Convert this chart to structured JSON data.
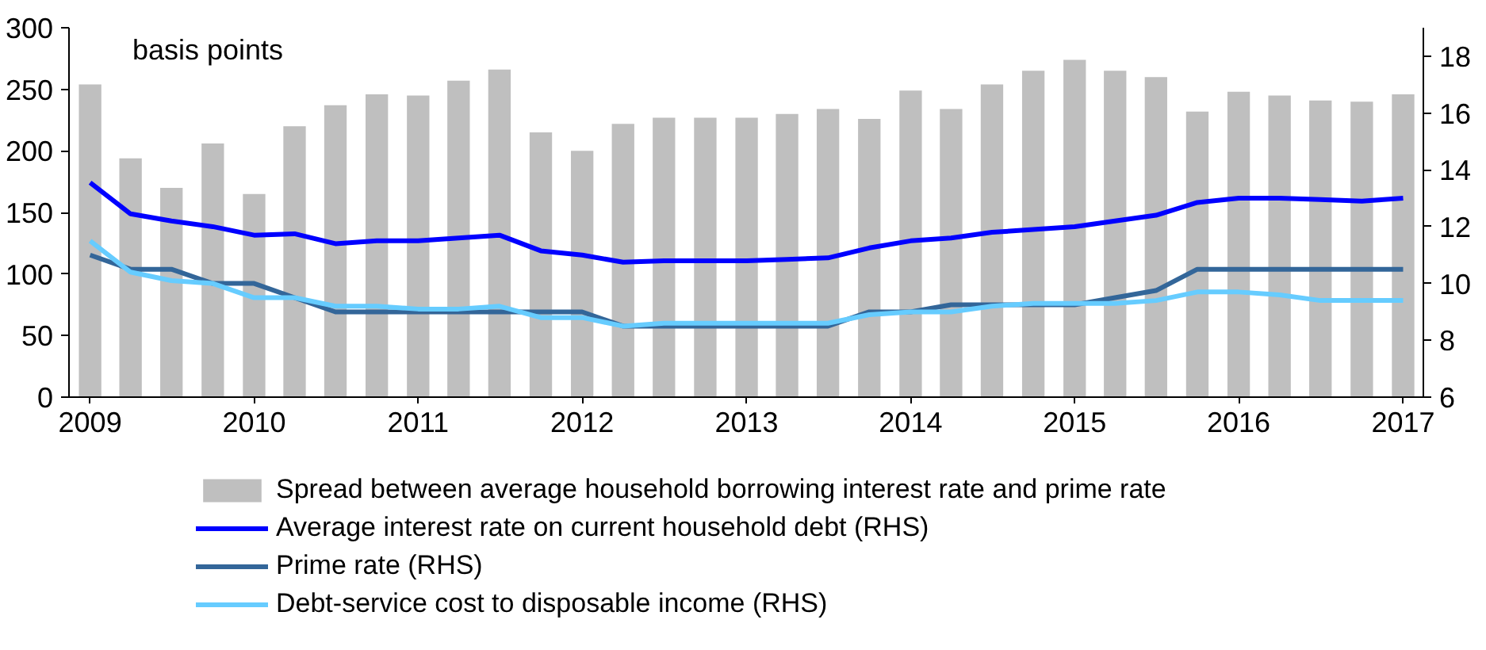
{
  "chart_data": {
    "type": "bar",
    "x": [
      "2009-01-01",
      "2009-04-01",
      "2009-07-01",
      "2009-10-01",
      "2010-01-01",
      "2010-04-01",
      "2010-07-01",
      "2010-10-01",
      "2011-01-01",
      "2011-04-01",
      "2011-07-01",
      "2011-10-01",
      "2012-01-01",
      "2012-04-01",
      "2012-07-01",
      "2012-10-01",
      "2013-01-01",
      "2013-04-01",
      "2013-07-01",
      "2013-10-01",
      "2014-01-01",
      "2014-04-01",
      "2014-07-01",
      "2014-10-01",
      "2015-01-01",
      "2015-04-01",
      "2015-07-01",
      "2015-10-01",
      "2016-01-01",
      "2016-04-01",
      "2016-07-01",
      "2016-10-01",
      "2017-01-01"
    ],
    "series": [
      {
        "name": "Spread between average household borrowing interest rate and prime rate",
        "color": "#bfbfbf",
        "values": [
          254,
          194,
          170,
          206,
          165,
          220,
          237,
          246,
          245,
          257,
          266,
          215,
          200,
          222,
          227,
          227,
          227,
          230,
          234,
          226,
          249,
          234,
          254,
          265,
          274,
          265,
          260,
          232,
          248,
          245,
          241,
          240,
          246
        ]
      },
      {
        "name": "Average interest rate on current household debt (RHS)",
        "type": "line",
        "axis": "y2",
        "color": "#0000ff",
        "values": [
          13.55,
          12.45,
          12.2,
          12.0,
          11.7,
          11.75,
          11.4,
          11.5,
          11.5,
          11.6,
          11.7,
          11.15,
          11.0,
          10.75,
          10.8,
          10.8,
          10.8,
          10.85,
          10.9,
          11.25,
          11.5,
          11.6,
          11.8,
          11.9,
          12.0,
          12.2,
          12.4,
          12.85,
          13.0,
          13.0,
          12.95,
          12.9,
          13.0
        ]
      },
      {
        "name": "Prime rate (RHS)",
        "type": "line",
        "axis": "y2",
        "color": "#336699",
        "values": [
          11.0,
          10.5,
          10.5,
          10.0,
          10.0,
          9.5,
          9.0,
          9.0,
          9.0,
          9.0,
          9.0,
          9.0,
          9.0,
          8.5,
          8.5,
          8.5,
          8.5,
          8.5,
          8.5,
          9.0,
          9.0,
          9.25,
          9.25,
          9.25,
          9.25,
          9.5,
          9.75,
          10.5,
          10.5,
          10.5,
          10.5,
          10.5,
          10.5
        ]
      },
      {
        "name": "Debt-service cost to disposable income (RHS)",
        "type": "line",
        "axis": "y2",
        "color": "#66ccff",
        "values": [
          11.5,
          10.4,
          10.1,
          10.0,
          9.5,
          9.5,
          9.2,
          9.2,
          9.1,
          9.1,
          9.2,
          8.8,
          8.8,
          8.5,
          8.6,
          8.6,
          8.6,
          8.6,
          8.6,
          8.9,
          9.0,
          9.0,
          9.2,
          9.3,
          9.3,
          9.3,
          9.4,
          9.7,
          9.7,
          9.6,
          9.4,
          9.4,
          9.4
        ]
      }
    ],
    "annotations": [
      "basis points"
    ],
    "xlim": [
      "2008-11-15",
      "2017-02-15"
    ],
    "xticks": [
      "2009",
      "2010",
      "2011",
      "2012",
      "2013",
      "2014",
      "2015",
      "2016",
      "2017"
    ],
    "ylim": [
      0,
      300
    ],
    "yticks": [
      0,
      50,
      100,
      150,
      200,
      250,
      300
    ],
    "y2lim": [
      6,
      19
    ],
    "y2ticks": [
      6,
      8,
      10,
      12,
      14,
      16,
      18
    ],
    "legend": "bottom",
    "grid": false
  }
}
